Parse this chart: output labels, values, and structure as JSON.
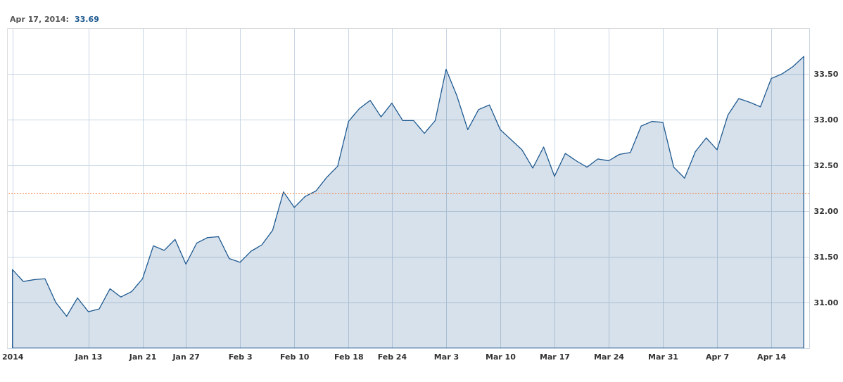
{
  "chart_data": {
    "type": "area",
    "title": "Apr 17, 2014:",
    "annotations": [
      "33.69"
    ],
    "categories": [
      "2014",
      null,
      null,
      null,
      null,
      null,
      null,
      "Jan 13",
      null,
      null,
      null,
      null,
      "Jan 21",
      null,
      null,
      null,
      "Jan 27",
      null,
      null,
      null,
      null,
      "Feb 3",
      null,
      null,
      null,
      null,
      "Feb 10",
      null,
      null,
      null,
      null,
      "Feb 18",
      null,
      null,
      null,
      "Feb 24",
      null,
      null,
      null,
      null,
      "Mar 3",
      null,
      null,
      null,
      null,
      "Mar 10",
      null,
      null,
      null,
      null,
      "Mar 17",
      null,
      null,
      null,
      null,
      "Mar 24",
      null,
      null,
      null,
      null,
      "Mar 31",
      null,
      null,
      null,
      null,
      "Apr 7",
      null,
      null,
      null,
      null,
      "Apr 14",
      null,
      null,
      null
    ],
    "series": [
      {
        "color": "#1f5a91",
        "values": [
          31.36,
          31.23,
          31.25,
          31.26,
          31.0,
          30.85,
          31.05,
          30.9,
          30.93,
          31.15,
          31.06,
          31.12,
          31.26,
          31.62,
          31.57,
          31.69,
          31.42,
          31.65,
          31.71,
          31.72,
          31.48,
          31.44,
          31.56,
          31.63,
          31.79,
          32.21,
          32.04,
          32.16,
          32.22,
          32.37,
          32.49,
          32.98,
          33.12,
          33.21,
          33.03,
          33.18,
          32.99,
          32.99,
          32.85,
          32.99,
          33.55,
          33.26,
          32.89,
          33.11,
          33.16,
          32.89,
          32.78,
          32.67,
          32.47,
          32.7,
          32.38,
          32.63,
          32.55,
          32.48,
          32.57,
          32.55,
          32.62,
          32.64,
          32.93,
          32.98,
          32.97,
          32.48,
          32.36,
          32.65,
          32.8,
          32.67,
          33.05,
          33.23,
          33.19,
          33.14,
          33.45,
          33.5,
          33.58,
          33.69
        ]
      }
    ],
    "ylim": [
      30.5,
      34.0
    ],
    "yticks": [
      {
        "value": 31,
        "label": "31.00"
      },
      {
        "value": 31.5,
        "label": "31.50"
      },
      {
        "value": 32,
        "label": "32.00"
      },
      {
        "value": 32.5,
        "label": "32.50"
      },
      {
        "value": 33,
        "label": "33.00"
      },
      {
        "value": 33.5,
        "label": "33.50"
      }
    ],
    "ref_lines": [
      {
        "axis": "y",
        "value": 32.19,
        "color": "#f07f3c",
        "line_style": "dotted"
      }
    ],
    "grid": true,
    "marker": "none",
    "line_style": "solid"
  }
}
